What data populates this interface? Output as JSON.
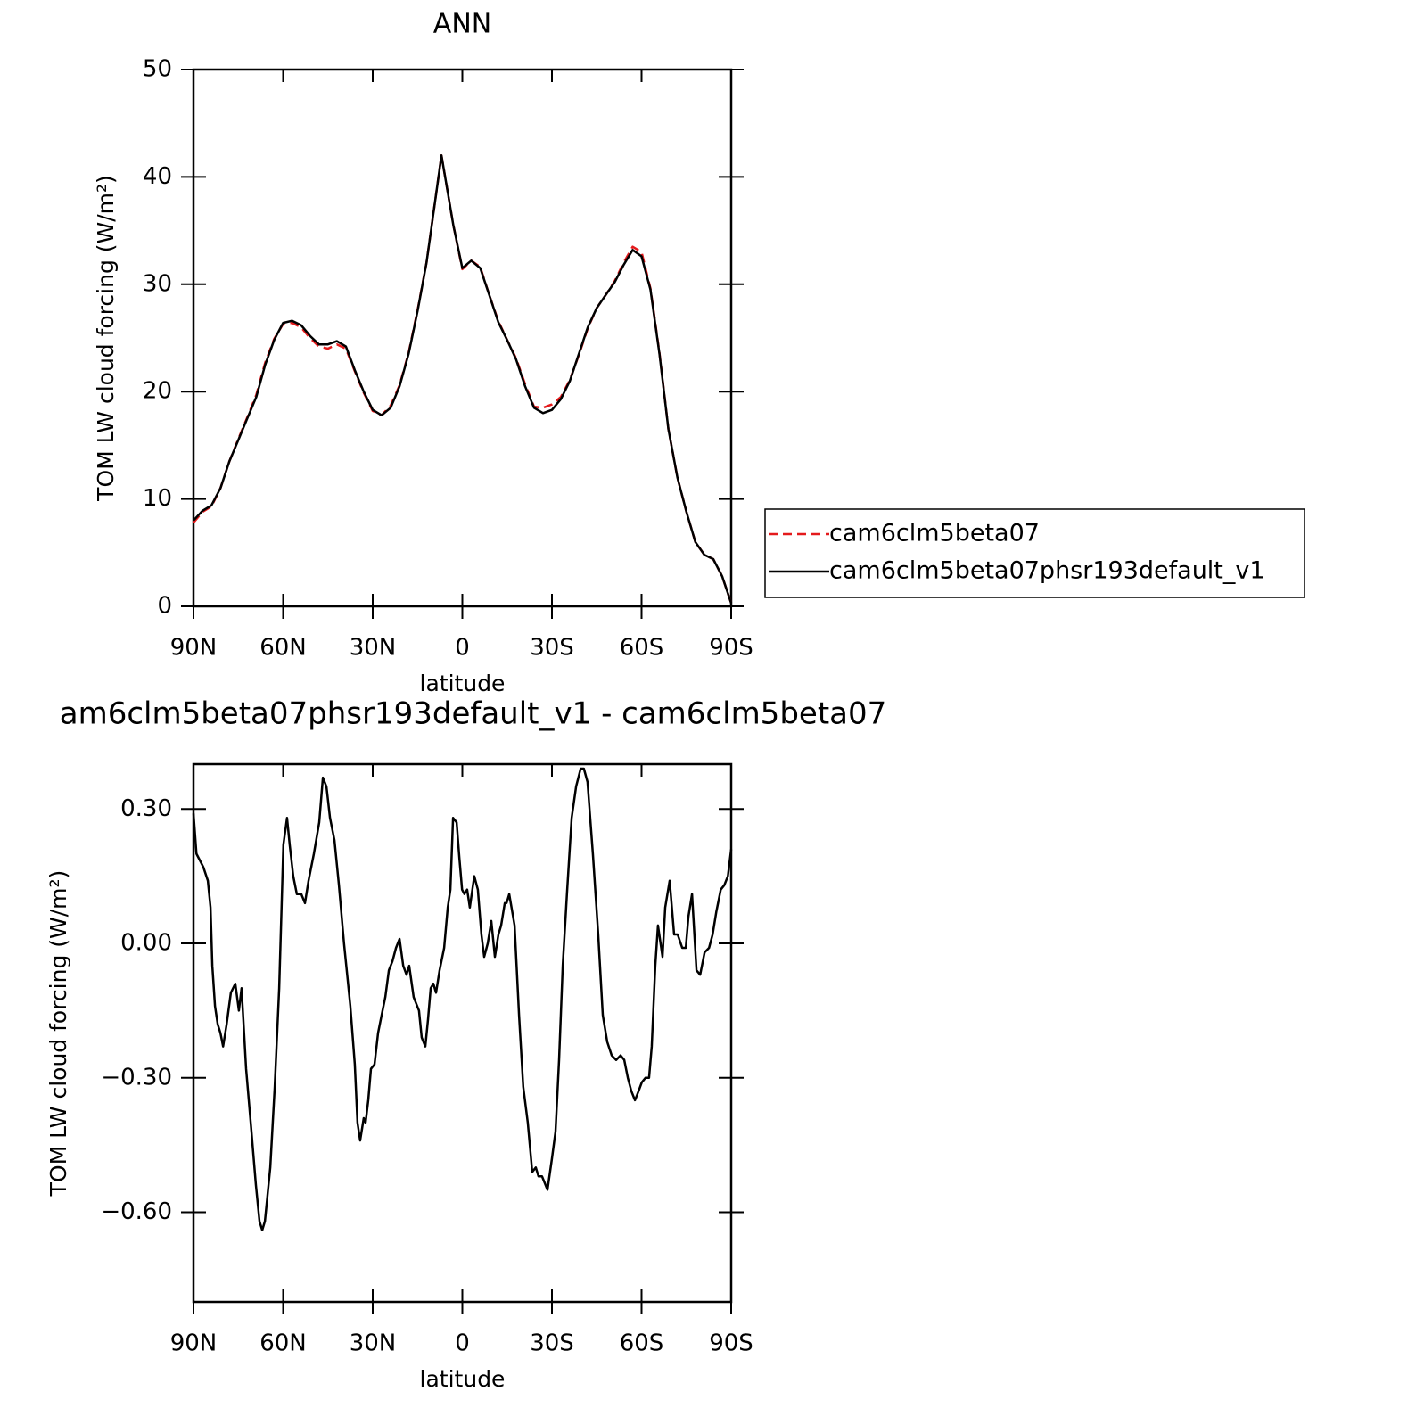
{
  "chart_data": [
    {
      "type": "line",
      "title": "ANN",
      "xlabel": "latitude",
      "ylabel": "TOM LW cloud forcing (W/m²)",
      "x": [
        90,
        87,
        84,
        81,
        78,
        75,
        72,
        69,
        66,
        63,
        60,
        57,
        54,
        51,
        48,
        45,
        42,
        39,
        36,
        33,
        30,
        27,
        24,
        21,
        18,
        15,
        12,
        9,
        7,
        3,
        0,
        -3,
        -6,
        -9,
        -12,
        -15,
        -18,
        -21,
        -24,
        -27,
        -30,
        -33,
        -36,
        -39,
        -42,
        -45,
        -48,
        -51,
        -54,
        -57,
        -60,
        -63,
        -66,
        -69,
        -72,
        -75,
        -78,
        -81,
        -84,
        -87,
        -90
      ],
      "series": [
        {
          "name": "cam6clm5beta07",
          "color": "#e41a1c",
          "linestyle": "dashed",
          "values": [
            7.8,
            8.8,
            9.3,
            11,
            13.5,
            15.6,
            17.6,
            19.7,
            22.7,
            24.9,
            26.3,
            26.4,
            26,
            25,
            24.2,
            24,
            24.4,
            24,
            21.9,
            19.9,
            18.2,
            17.8,
            18.7,
            20.6,
            23.6,
            27.6,
            32,
            38,
            42,
            35.5,
            31.4,
            32.2,
            31.6,
            29,
            26.6,
            24.8,
            23.1,
            20.7,
            18.6,
            18.5,
            18.8,
            19.5,
            21.1,
            23.4,
            25.9,
            27.8,
            29,
            30.3,
            32,
            33.5,
            33,
            29.6,
            23.6,
            16.5,
            12,
            8.8,
            6,
            4.8,
            4.4,
            2.8,
            0.3
          ]
        },
        {
          "name": "cam6clm5beta07phsr193default_v1",
          "color": "#000000",
          "linestyle": "solid",
          "values": [
            8,
            8.9,
            9.4,
            11,
            13.5,
            15.5,
            17.5,
            19.5,
            22.5,
            24.8,
            26.4,
            26.6,
            26.2,
            25.2,
            24.4,
            24.4,
            24.7,
            24.2,
            22,
            20,
            18.3,
            17.8,
            18.5,
            20.5,
            23.5,
            27.5,
            32,
            38,
            42,
            35.5,
            31.5,
            32.2,
            31.5,
            29,
            26.5,
            24.8,
            23,
            20.5,
            18.5,
            18,
            18.3,
            19.3,
            21,
            23.5,
            26,
            27.8,
            29,
            30.2,
            31.8,
            33.2,
            32.6,
            29.5,
            23.5,
            16.5,
            12,
            8.8,
            6,
            4.8,
            4.4,
            2.8,
            0.3
          ]
        }
      ],
      "xlim": [
        90,
        -90
      ],
      "xticks": [
        {
          "value": 90,
          "label": "90N"
        },
        {
          "value": 60,
          "label": "60N"
        },
        {
          "value": 30,
          "label": "30N"
        },
        0,
        {
          "value": -30,
          "label": "30S"
        },
        {
          "value": -60,
          "label": "60S"
        },
        {
          "value": -90,
          "label": "90S"
        }
      ],
      "ylim": [
        0,
        50
      ],
      "yticks": [
        0,
        10,
        20,
        30,
        40,
        50
      ],
      "legend": "right"
    },
    {
      "type": "line",
      "title": "am6clm5beta07phsr193default_v1 - cam6clm5beta07",
      "xlabel": "latitude",
      "ylabel": "TOM LW cloud forcing (W/m²)",
      "x": [
        90,
        89,
        86.7,
        85.2,
        84.3,
        83.7,
        82.8,
        81.9,
        81,
        80.1,
        78.9,
        77.5,
        76,
        74.8,
        73.9,
        72.4,
        70.6,
        69.1,
        67.9,
        67,
        66.1,
        64.3,
        62.8,
        61.3,
        59.9,
        58.7,
        57.8,
        56.6,
        55.4,
        53.9,
        52.7,
        51.5,
        49.7,
        47.9,
        46.7,
        45.5,
        44.3,
        42.8,
        41.3,
        39.6,
        37.5,
        36,
        35.1,
        34.2,
        33,
        32.4,
        31.5,
        30.6,
        29.4,
        28.2,
        27,
        25.8,
        24.6,
        23.4,
        22.2,
        21,
        19.8,
        18.7,
        17.8,
        16.3,
        14.5,
        13.6,
        12.4,
        11.5,
        10.6,
        9.7,
        8.8,
        7.6,
        6.1,
        4.9,
        4,
        3.1,
        1.9,
        1,
        0.1,
        -0.7,
        -1.6,
        -2.5,
        -4,
        -5.2,
        -6.4,
        -7.3,
        -8.5,
        -9.7,
        -10.9,
        -12.1,
        -13,
        -14.2,
        -14.8,
        -15.7,
        -17.5,
        -19,
        -20.4,
        -21.9,
        -23.4,
        -24.6,
        -25.5,
        -26.7,
        -28.5,
        -30,
        -31.2,
        -32.4,
        -33.6,
        -35.1,
        -36.6,
        -38.1,
        -39.6,
        -40.7,
        -41.9,
        -43.7,
        -45.5,
        -47,
        -48.5,
        -50,
        -51.5,
        -53,
        -54.2,
        -55.4,
        -56.6,
        -57.8,
        -59,
        -60.1,
        -61.3,
        -62.5,
        -63.4,
        -64.6,
        -65.5,
        -67,
        -67.9,
        -69.4,
        -70.9,
        -72.1,
        -73.6,
        -74.8,
        -75.7,
        -76.9,
        -78.4,
        -79.6,
        -81.1,
        -82.6,
        -83.8,
        -85,
        -86.5,
        -87.7,
        -88.9,
        -90
      ],
      "values": [
        0.29,
        0.2,
        0.17,
        0.14,
        0.08,
        -0.05,
        -0.14,
        -0.18,
        -0.2,
        -0.23,
        -0.18,
        -0.11,
        -0.09,
        -0.15,
        -0.1,
        -0.28,
        -0.42,
        -0.54,
        -0.62,
        -0.64,
        -0.62,
        -0.5,
        -0.32,
        -0.1,
        0.22,
        0.28,
        0.22,
        0.15,
        0.11,
        0.11,
        0.09,
        0.14,
        0.2,
        0.27,
        0.37,
        0.35,
        0.28,
        0.23,
        0.13,
        0,
        -0.14,
        -0.27,
        -0.4,
        -0.44,
        -0.39,
        -0.4,
        -0.35,
        -0.28,
        -0.27,
        -0.2,
        -0.16,
        -0.12,
        -0.06,
        -0.04,
        -0.01,
        0.01,
        -0.05,
        -0.07,
        -0.05,
        -0.12,
        -0.15,
        -0.21,
        -0.23,
        -0.17,
        -0.1,
        -0.09,
        -0.11,
        -0.06,
        -0.01,
        0.08,
        0.12,
        0.28,
        0.27,
        0.19,
        0.12,
        0.11,
        0.12,
        0.08,
        0.15,
        0.12,
        0.02,
        -0.03,
        0,
        0.05,
        -0.03,
        0.02,
        0.04,
        0.09,
        0.09,
        0.11,
        0.04,
        -0.16,
        -0.32,
        -0.4,
        -0.51,
        -0.5,
        -0.52,
        -0.52,
        -0.55,
        -0.48,
        -0.42,
        -0.26,
        -0.05,
        0.12,
        0.28,
        0.35,
        0.39,
        0.39,
        0.36,
        0.2,
        0.02,
        -0.16,
        -0.22,
        -0.25,
        -0.26,
        -0.25,
        -0.26,
        -0.3,
        -0.33,
        -0.35,
        -0.33,
        -0.31,
        -0.3,
        -0.3,
        -0.23,
        -0.05,
        0.04,
        -0.03,
        0.08,
        0.14,
        0.02,
        0.02,
        -0.01,
        -0.01,
        0.06,
        0.11,
        -0.06,
        -0.07,
        -0.02,
        -0.01,
        0.02,
        0.07,
        0.12,
        0.13,
        0.15,
        0.21
      ],
      "color": "#000000",
      "xlim": [
        90,
        -90
      ],
      "xticks": [
        {
          "value": 90,
          "label": "90N"
        },
        {
          "value": 60,
          "label": "60N"
        },
        {
          "value": 30,
          "label": "30N"
        },
        0,
        {
          "value": -30,
          "label": "30S"
        },
        {
          "value": -60,
          "label": "60S"
        },
        {
          "value": -90,
          "label": "90S"
        }
      ],
      "ylim": [
        -0.8,
        0.4
      ],
      "yticks": [
        {
          "value": -0.6,
          "label": "−0.60"
        },
        {
          "value": -0.3,
          "label": "−0.30"
        },
        {
          "value": 0,
          "label": "0.00"
        },
        {
          "value": 0.3,
          "label": "0.30"
        }
      ]
    }
  ]
}
